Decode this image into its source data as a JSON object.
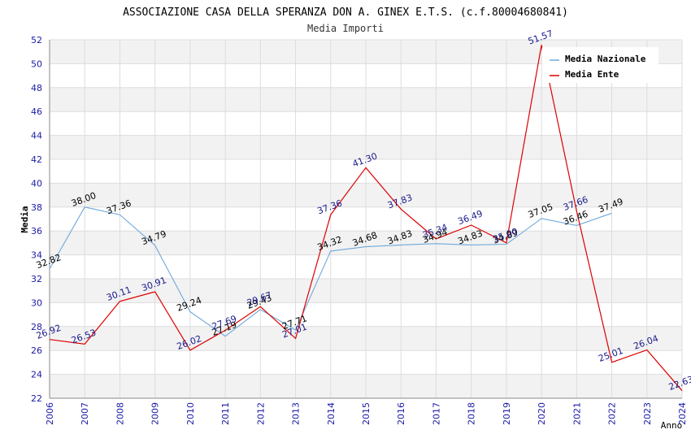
{
  "chart_data": {
    "type": "line",
    "title": "ASSOCIAZIONE CASA DELLA SPERANZA DON A. GINEX E.T.S. (c.f.80004680841)",
    "subtitle": "Media Importi",
    "xlabel": "Anno",
    "ylabel": "Media",
    "ylim": [
      22,
      52
    ],
    "yticks": [
      22,
      24,
      26,
      28,
      30,
      32,
      34,
      36,
      38,
      40,
      42,
      44,
      46,
      48,
      50,
      52
    ],
    "x": [
      "2006",
      "2007",
      "2008",
      "2009",
      "2010",
      "2011",
      "2012",
      "2013",
      "2014",
      "2015",
      "2016",
      "2017",
      "2018",
      "2019",
      "2020",
      "2021",
      "2022",
      "2023",
      "2024"
    ],
    "grid": true,
    "legend_position": "top-right",
    "series": [
      {
        "name": "Media Nazionale",
        "color": "#6fa8dc",
        "label_color": "#000000",
        "values": [
          32.82,
          38.0,
          37.36,
          34.79,
          29.24,
          27.19,
          29.43,
          27.71,
          34.32,
          34.68,
          34.83,
          34.94,
          34.83,
          34.89,
          37.05,
          36.46,
          37.49,
          null,
          null
        ],
        "labels": [
          "32.82",
          "38.00",
          "37.36",
          "34.79",
          "29.24",
          "27.19",
          "29.43",
          "27.71",
          "34.32",
          "34.68",
          "34.83",
          "34.94",
          "34.83",
          "34.89",
          "37.05",
          "36.46",
          "37.49",
          null,
          null
        ]
      },
      {
        "name": "Media Ente",
        "color": "#dd0000",
        "label_color": "#1a1a8c",
        "values": [
          26.92,
          26.53,
          30.11,
          30.91,
          26.02,
          27.69,
          29.67,
          27.01,
          37.36,
          41.3,
          37.83,
          35.34,
          36.49,
          35.0,
          51.57,
          37.66,
          25.01,
          26.04,
          22.63
        ],
        "labels": [
          "26.92",
          "26.53",
          "30.11",
          "30.91",
          "26.02",
          "27.69",
          "29.67",
          "27.01",
          "37.36",
          "41.30",
          "37.83",
          "35.34",
          "36.49",
          "35.00",
          "51.57",
          "37.66",
          "25.01",
          "26.04",
          "22.63"
        ]
      }
    ]
  },
  "colors": {
    "axis_tick_text": "#1a1aa8",
    "grid_band": "#f2f2f2",
    "grid_line": "#dddddd",
    "axis_line": "#888888"
  }
}
